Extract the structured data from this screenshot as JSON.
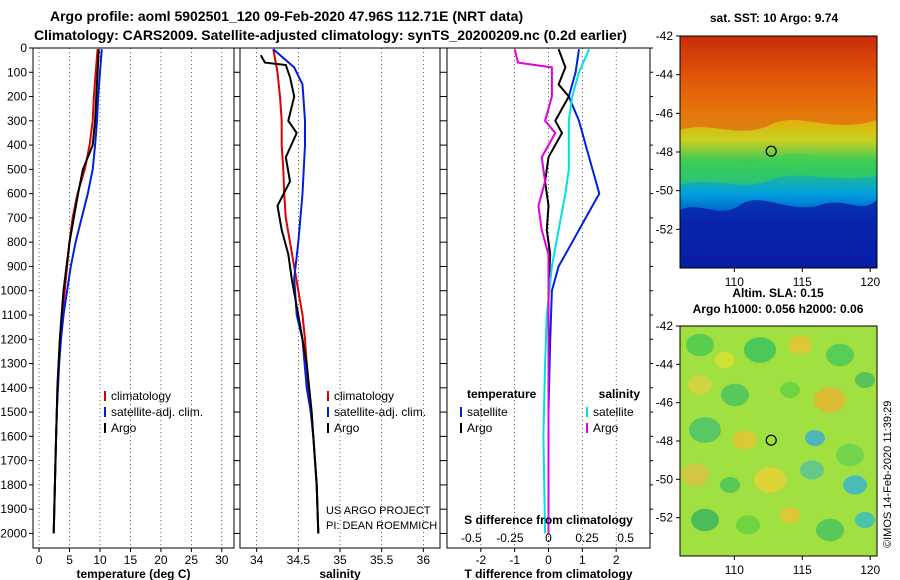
{
  "header": {
    "line1": "Argo profile: aoml 5902501_120 09-Feb-2020 47.96S 112.71E (NRT data)",
    "line2": "Climatology: CARS2009. Satellite-adjusted climatology: synTS_20200209.nc (0.2d earlier)"
  },
  "credits": {
    "project": "US ARGO PROJECT",
    "pi": "PI: DEAN ROEMMICH",
    "imos": "©IMOS 14-Feb-2020 11:39:29"
  },
  "colors": {
    "climatology": "#e00000",
    "satellite": "#0020e0",
    "argo": "#000000",
    "s_satellite": "#00e0e0",
    "s_argo": "#e000e0"
  },
  "chart_data": [
    {
      "id": "temperature",
      "type": "line",
      "xlabel": "temperature (deg C)",
      "ylabel": "",
      "xlim": [
        -1,
        32
      ],
      "ylim": [
        0,
        2060
      ],
      "y_reversed": true,
      "xticks": [
        0,
        5,
        10,
        15,
        20,
        25,
        30
      ],
      "yticks": [
        0,
        100,
        200,
        300,
        400,
        500,
        600,
        700,
        800,
        900,
        1000,
        1100,
        1200,
        1300,
        1400,
        1500,
        1600,
        1700,
        1800,
        1900,
        2000
      ],
      "legend": [
        "climatology",
        "satellite-adj. clim.",
        "Argo"
      ],
      "series": [
        {
          "name": "climatology",
          "color_key": "climatology",
          "points": [
            [
              9.6,
              5
            ],
            [
              9.3,
              100
            ],
            [
              9.0,
              200
            ],
            [
              8.8,
              300
            ],
            [
              8.3,
              400
            ],
            [
              7.5,
              500
            ],
            [
              6.3,
              600
            ],
            [
              5.5,
              700
            ],
            [
              5.0,
              800
            ],
            [
              4.6,
              900
            ],
            [
              4.2,
              1000
            ],
            [
              3.8,
              1100
            ],
            [
              3.5,
              1200
            ],
            [
              3.2,
              1300
            ],
            [
              3.0,
              1400
            ],
            [
              2.9,
              1500
            ],
            [
              2.8,
              1600
            ],
            [
              2.7,
              1700
            ],
            [
              2.6,
              1800
            ],
            [
              2.5,
              1900
            ],
            [
              2.4,
              2000
            ]
          ]
        },
        {
          "name": "satellite-adj. clim.",
          "color_key": "satellite",
          "points": [
            [
              10.3,
              5
            ],
            [
              10.0,
              100
            ],
            [
              9.7,
              200
            ],
            [
              9.5,
              300
            ],
            [
              9.2,
              400
            ],
            [
              8.8,
              500
            ],
            [
              8.0,
              600
            ],
            [
              7.0,
              700
            ],
            [
              6.0,
              800
            ],
            [
              5.2,
              900
            ],
            [
              4.6,
              1000
            ],
            [
              4.0,
              1100
            ],
            [
              3.6,
              1200
            ],
            [
              3.3,
              1300
            ],
            [
              3.1,
              1400
            ],
            [
              2.9,
              1500
            ],
            [
              2.8,
              1600
            ],
            [
              2.7,
              1700
            ],
            [
              2.6,
              1800
            ],
            [
              2.5,
              1900
            ],
            [
              2.4,
              2000
            ]
          ]
        },
        {
          "name": "Argo",
          "color_key": "argo",
          "points": [
            [
              9.8,
              5
            ],
            [
              9.6,
              100
            ],
            [
              9.4,
              200
            ],
            [
              9.2,
              300
            ],
            [
              8.8,
              400
            ],
            [
              7.2,
              500
            ],
            [
              6.4,
              600
            ],
            [
              5.7,
              700
            ],
            [
              5.0,
              800
            ],
            [
              4.5,
              900
            ],
            [
              4.0,
              1000
            ],
            [
              3.7,
              1100
            ],
            [
              3.4,
              1200
            ],
            [
              3.2,
              1300
            ],
            [
              3.0,
              1400
            ],
            [
              2.9,
              1500
            ],
            [
              2.8,
              1600
            ],
            [
              2.7,
              1700
            ],
            [
              2.6,
              1800
            ],
            [
              2.5,
              1900
            ],
            [
              2.4,
              2000
            ]
          ]
        }
      ]
    },
    {
      "id": "salinity",
      "type": "line",
      "xlabel": "salinity",
      "ylabel": "",
      "xlim": [
        33.8,
        36.2
      ],
      "ylim": [
        0,
        2060
      ],
      "y_reversed": true,
      "xticks": [
        34,
        34.5,
        35,
        35.5,
        36
      ],
      "legend": [
        "climatology",
        "satellite-adj. clim.",
        "Argo"
      ],
      "series": [
        {
          "name": "climatology",
          "color_key": "climatology",
          "points": [
            [
              34.2,
              5
            ],
            [
              34.25,
              100
            ],
            [
              34.28,
              200
            ],
            [
              34.3,
              300
            ],
            [
              34.3,
              400
            ],
            [
              34.32,
              500
            ],
            [
              34.33,
              600
            ],
            [
              34.35,
              700
            ],
            [
              34.4,
              800
            ],
            [
              34.45,
              900
            ],
            [
              34.5,
              1000
            ],
            [
              34.55,
              1100
            ],
            [
              34.58,
              1200
            ],
            [
              34.6,
              1300
            ],
            [
              34.62,
              1400
            ],
            [
              34.65,
              1500
            ],
            [
              34.68,
              1600
            ],
            [
              34.7,
              1700
            ],
            [
              34.72,
              1800
            ],
            [
              34.73,
              1900
            ],
            [
              34.74,
              2000
            ]
          ]
        },
        {
          "name": "satellite-adj. clim.",
          "color_key": "satellite",
          "points": [
            [
              34.2,
              5
            ],
            [
              34.45,
              80
            ],
            [
              34.55,
              150
            ],
            [
              34.58,
              300
            ],
            [
              34.58,
              400
            ],
            [
              34.55,
              600
            ],
            [
              34.5,
              800
            ],
            [
              34.45,
              950
            ],
            [
              34.48,
              1100
            ],
            [
              34.55,
              1200
            ],
            [
              34.6,
              1400
            ],
            [
              34.65,
              1500
            ],
            [
              34.68,
              1600
            ],
            [
              34.7,
              1700
            ],
            [
              34.72,
              1800
            ],
            [
              34.73,
              1900
            ],
            [
              34.74,
              2000
            ]
          ]
        },
        {
          "name": "Argo",
          "color_key": "argo",
          "points": [
            [
              34.05,
              30
            ],
            [
              34.1,
              60
            ],
            [
              34.35,
              70
            ],
            [
              34.4,
              120
            ],
            [
              34.45,
              200
            ],
            [
              34.38,
              300
            ],
            [
              34.48,
              350
            ],
            [
              34.35,
              450
            ],
            [
              34.4,
              550
            ],
            [
              34.25,
              650
            ],
            [
              34.3,
              750
            ],
            [
              34.38,
              850
            ],
            [
              34.42,
              950
            ],
            [
              34.5,
              1100
            ],
            [
              34.55,
              1200
            ],
            [
              34.6,
              1300
            ],
            [
              34.63,
              1400
            ],
            [
              34.66,
              1500
            ],
            [
              34.68,
              1600
            ],
            [
              34.7,
              1700
            ],
            [
              34.72,
              1800
            ],
            [
              34.73,
              1900
            ],
            [
              34.74,
              2000
            ]
          ]
        }
      ]
    },
    {
      "id": "difference",
      "type": "line",
      "xlabel": "T difference from climatology",
      "xlabel2": "S difference from climatology",
      "xlim": [
        -3,
        3
      ],
      "ylim": [
        0,
        2060
      ],
      "y_reversed": true,
      "xticks": [
        -2,
        -1,
        0,
        1,
        2
      ],
      "xticks2": [
        "-0.5",
        "-0.25",
        "0",
        "0.25",
        "0.5"
      ],
      "legend_left_title": "temperature",
      "legend_right_title": "salinity",
      "legend_left": [
        "satellite",
        "Argo"
      ],
      "legend_right": [
        "satellite",
        "Argo"
      ],
      "series": [
        {
          "name": "T satellite",
          "color_key": "satellite",
          "points": [
            [
              0.9,
              5
            ],
            [
              0.8,
              100
            ],
            [
              0.6,
              200
            ],
            [
              0.9,
              300
            ],
            [
              1.1,
              400
            ],
            [
              1.3,
              500
            ],
            [
              1.5,
              600
            ],
            [
              1.1,
              700
            ],
            [
              0.7,
              800
            ],
            [
              0.3,
              900
            ],
            [
              0.1,
              1000
            ],
            [
              0.05,
              1200
            ],
            [
              0,
              1500
            ],
            [
              0,
              2000
            ]
          ]
        },
        {
          "name": "T Argo",
          "color_key": "argo",
          "points": [
            [
              0.3,
              5
            ],
            [
              0.5,
              80
            ],
            [
              0.3,
              150
            ],
            [
              0.6,
              200
            ],
            [
              0.2,
              300
            ],
            [
              0.4,
              350
            ],
            [
              0,
              450
            ],
            [
              -0.1,
              550
            ],
            [
              0,
              650
            ],
            [
              -0.05,
              750
            ],
            [
              0.05,
              850
            ],
            [
              0,
              1000
            ],
            [
              0,
              1500
            ],
            [
              0,
              2000
            ]
          ]
        },
        {
          "name": "S satellite",
          "color_key": "s_satellite",
          "points": [
            [
              1.2,
              5
            ],
            [
              0.9,
              100
            ],
            [
              0.7,
              200
            ],
            [
              0.6,
              300
            ],
            [
              0.6,
              500
            ],
            [
              0.5,
              600
            ],
            [
              0.3,
              750
            ],
            [
              0.1,
              900
            ],
            [
              -0.05,
              1100
            ],
            [
              -0.1,
              1300
            ],
            [
              -0.15,
              1600
            ],
            [
              -0.1,
              2000
            ]
          ]
        },
        {
          "name": "S Argo",
          "color_key": "s_argo",
          "points": [
            [
              -1.0,
              5
            ],
            [
              -0.9,
              60
            ],
            [
              0.1,
              80
            ],
            [
              0.1,
              200
            ],
            [
              -0.1,
              300
            ],
            [
              0.2,
              350
            ],
            [
              -0.2,
              450
            ],
            [
              -0.1,
              550
            ],
            [
              -0.3,
              650
            ],
            [
              -0.2,
              750
            ],
            [
              0.0,
              850
            ],
            [
              0,
              1000
            ],
            [
              0,
              1500
            ],
            [
              0,
              2000
            ]
          ]
        }
      ]
    },
    {
      "id": "sst_map",
      "type": "heatmap",
      "title": "sat. SST: 10 Argo: 9.74",
      "xlim": [
        106,
        120.5
      ],
      "ylim": [
        -54,
        -42
      ],
      "xticks": [
        110,
        115,
        120
      ],
      "yticks": [
        -42,
        -44,
        -46,
        -48,
        -50,
        -52
      ],
      "marker": [
        112.71,
        -47.96
      ],
      "colormap": "jet"
    },
    {
      "id": "sla_map",
      "type": "heatmap",
      "title": "Altim. SLA: 0.15",
      "subtitle": "Argo h1000: 0.056 h2000: 0.06",
      "xlim": [
        106,
        120.5
      ],
      "ylim": [
        -54,
        -42
      ],
      "xticks": [
        110,
        115,
        120
      ],
      "yticks": [
        -42,
        -44,
        -46,
        -48,
        -50,
        -52
      ],
      "marker": [
        112.71,
        -47.96
      ],
      "colormap": "jet"
    }
  ]
}
